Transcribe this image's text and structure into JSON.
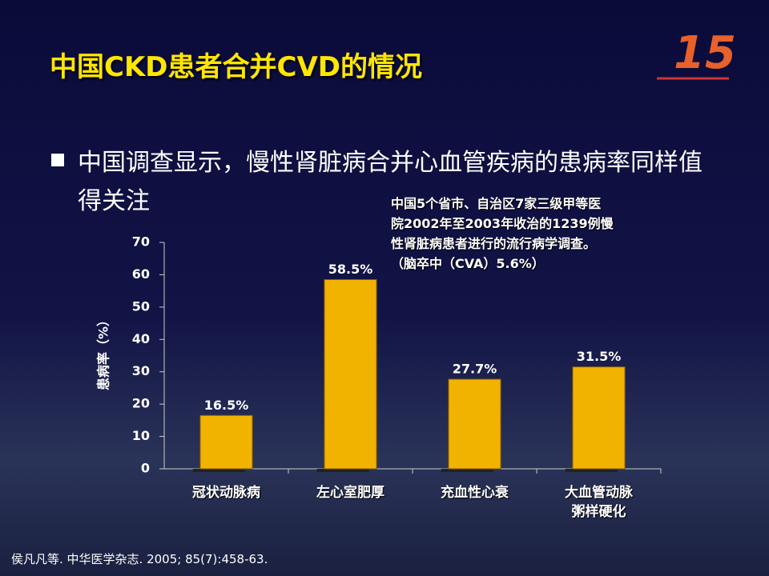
{
  "slide": {
    "title": "中国CKD患者合并CVD的情况",
    "bullet": "中国调查显示，慢性肾脏病合并心血管疾病的患病率同样值得关注",
    "annotation": [
      "中国5个省市、自治区7家三级甲等医",
      "院2002年至2003年收治的1239例慢",
      "性肾脏病患者进行的流行病学调查。",
      "（脑卒中（CVA）5.6%）"
    ],
    "citation": "侯凡凡等. 中华医学杂志. 2005; 85(7):458-63."
  },
  "chart_data": {
    "type": "bar",
    "y_label": "患病率（%）",
    "categories": [
      "冠状动脉病",
      "左心室肥厚",
      "充血性心衰",
      "大血管动脉粥样硬化"
    ],
    "values": [
      16.5,
      58.5,
      27.7,
      31.5
    ],
    "value_labels": [
      "16.5%",
      "58.5%",
      "27.7%",
      "31.5%"
    ],
    "color": "#f2b200",
    "ylim": [
      0,
      70
    ],
    "yticks": [
      0,
      10,
      20,
      30,
      40,
      50,
      60,
      70
    ],
    "grid": false
  }
}
